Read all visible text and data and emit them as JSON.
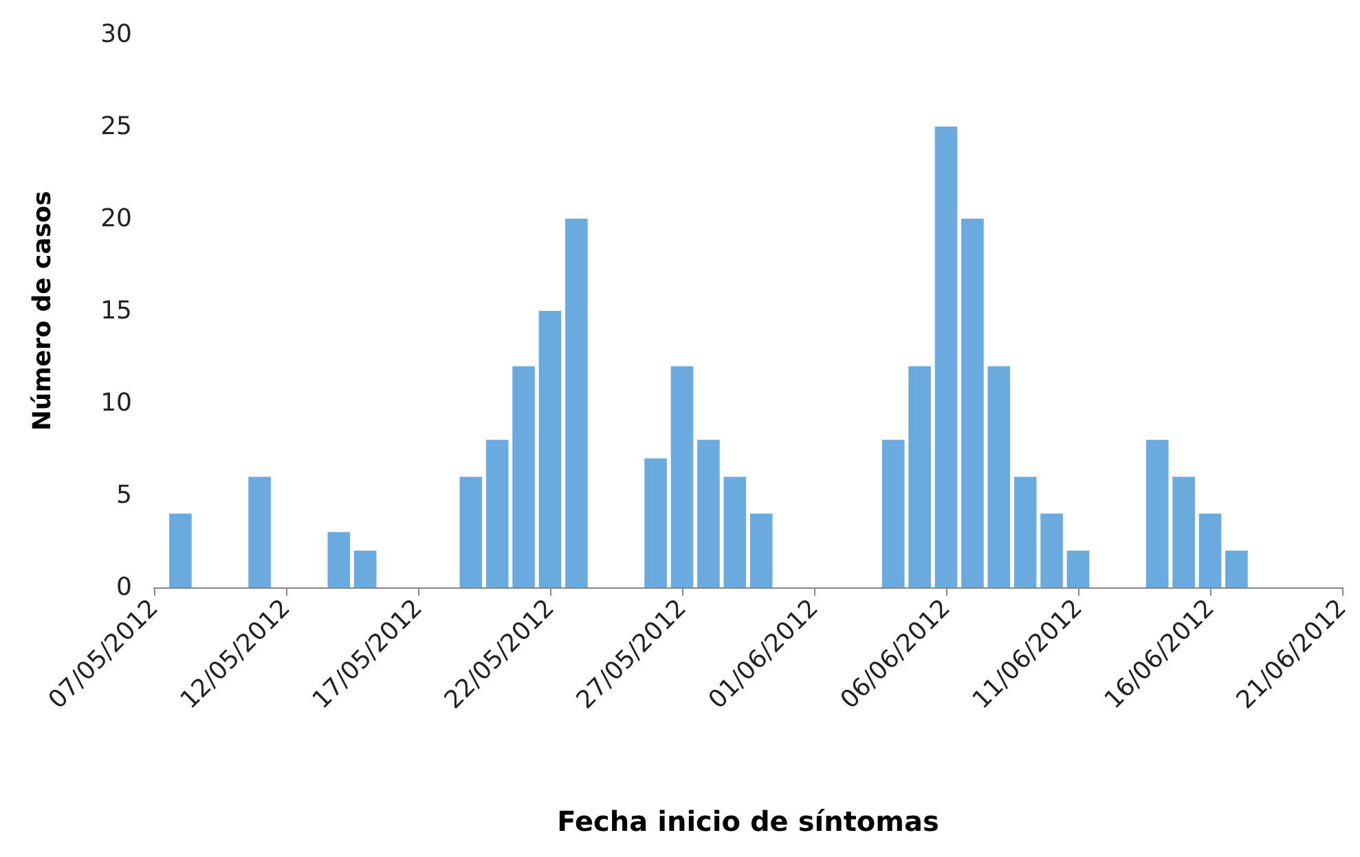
{
  "chart_data": {
    "type": "bar",
    "xlabel": "Fecha inicio de síntomas",
    "ylabel": "Número de casos",
    "x": [
      "2012-05-08",
      "2012-05-11",
      "2012-05-14",
      "2012-05-15",
      "2012-05-19",
      "2012-05-20",
      "2012-05-21",
      "2012-05-22",
      "2012-05-23",
      "2012-05-26",
      "2012-05-27",
      "2012-05-28",
      "2012-05-29",
      "2012-05-30",
      "2012-06-04",
      "2012-06-05",
      "2012-06-06",
      "2012-06-07",
      "2012-06-08",
      "2012-06-09",
      "2012-06-10",
      "2012-06-11",
      "2012-06-14",
      "2012-06-15",
      "2012-06-16",
      "2012-06-17"
    ],
    "values": [
      4,
      6,
      3,
      2,
      6,
      8,
      12,
      15,
      20,
      7,
      12,
      8,
      6,
      4,
      8,
      12,
      25,
      20,
      12,
      6,
      4,
      2,
      8,
      6,
      4,
      2
    ],
    "color": "#6aaadf",
    "xlim": [
      "2012-05-07",
      "2012-06-21"
    ],
    "xticks": [
      {
        "value": "2012-05-07",
        "label": "07/05/2012"
      },
      {
        "value": "2012-05-12",
        "label": "12/05/2012"
      },
      {
        "value": "2012-05-17",
        "label": "17/05/2012"
      },
      {
        "value": "2012-05-22",
        "label": "22/05/2012"
      },
      {
        "value": "2012-05-27",
        "label": "27/05/2012"
      },
      {
        "value": "2012-06-01",
        "label": "01/06/2012"
      },
      {
        "value": "2012-06-06",
        "label": "06/06/2012"
      },
      {
        "value": "2012-06-11",
        "label": "11/06/2012"
      },
      {
        "value": "2012-06-16",
        "label": "16/06/2012"
      },
      {
        "value": "2012-06-21",
        "label": "21/06/2012"
      }
    ],
    "ylim": [
      0,
      30
    ],
    "yticks": [
      0,
      5,
      10,
      15,
      20,
      25,
      30
    ],
    "grid": false
  }
}
